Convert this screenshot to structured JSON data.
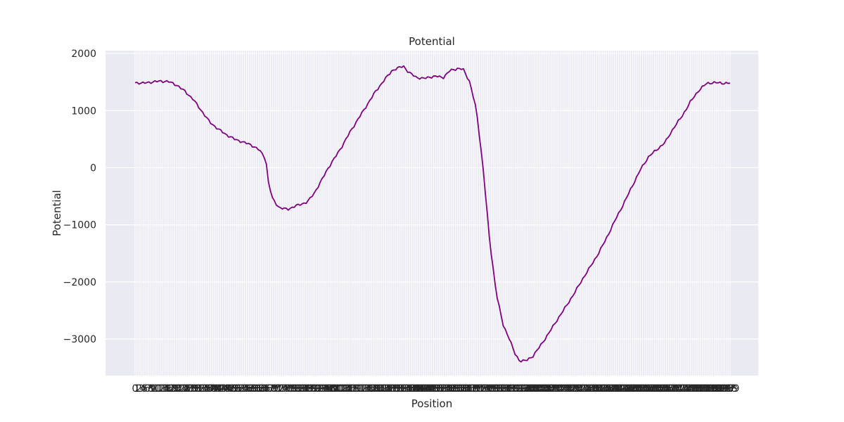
{
  "chart_data": {
    "type": "line",
    "title": "Potential",
    "xlabel": "Position",
    "ylabel": "Potential",
    "ylim": [
      -3640,
      2050
    ],
    "yticks": [
      2000,
      1000,
      0,
      -1000,
      -2000,
      -3000
    ],
    "ytick_labels": [
      "2000",
      "1000",
      "0",
      "−1000",
      "−2000",
      "−3000"
    ],
    "grid": true,
    "x_count": 300,
    "line_color": "#800080",
    "background_color": "#EAEAF2",
    "series": [
      {
        "name": "",
        "control_points": [
          [
            0,
            1490
          ],
          [
            5,
            1480
          ],
          [
            10,
            1500
          ],
          [
            15,
            1515
          ],
          [
            20,
            1510
          ],
          [
            25,
            1450
          ],
          [
            30,
            1340
          ],
          [
            35,
            1200
          ],
          [
            40,
            1000
          ],
          [
            45,
            800
          ],
          [
            50,
            680
          ],
          [
            55,
            580
          ],
          [
            60,
            500
          ],
          [
            65,
            450
          ],
          [
            70,
            400
          ],
          [
            75,
            310
          ],
          [
            79,
            150
          ],
          [
            80,
            -200
          ],
          [
            83,
            -550
          ],
          [
            87,
            -700
          ],
          [
            92,
            -730
          ],
          [
            96,
            -680
          ],
          [
            100,
            -640
          ],
          [
            104,
            -600
          ],
          [
            108,
            -450
          ],
          [
            112,
            -250
          ],
          [
            116,
            -30
          ],
          [
            120,
            150
          ],
          [
            125,
            380
          ],
          [
            130,
            640
          ],
          [
            135,
            870
          ],
          [
            140,
            1100
          ],
          [
            145,
            1330
          ],
          [
            150,
            1520
          ],
          [
            155,
            1700
          ],
          [
            160,
            1760
          ],
          [
            162,
            1780
          ],
          [
            165,
            1670
          ],
          [
            170,
            1580
          ],
          [
            174,
            1560
          ],
          [
            178,
            1590
          ],
          [
            182,
            1600
          ],
          [
            186,
            1580
          ],
          [
            190,
            1700
          ],
          [
            195,
            1740
          ],
          [
            198,
            1720
          ],
          [
            202,
            1500
          ],
          [
            206,
            1000
          ],
          [
            210,
            0
          ],
          [
            214,
            -1300
          ],
          [
            218,
            -2200
          ],
          [
            222,
            -2750
          ],
          [
            226,
            -3000
          ],
          [
            229,
            -3250
          ],
          [
            232,
            -3380
          ],
          [
            236,
            -3380
          ],
          [
            240,
            -3300
          ],
          [
            245,
            -3100
          ],
          [
            250,
            -2880
          ],
          [
            255,
            -2650
          ],
          [
            260,
            -2430
          ],
          [
            265,
            -2200
          ],
          [
            270,
            -1950
          ],
          [
            275,
            -1720
          ],
          [
            280,
            -1480
          ],
          [
            285,
            -1200
          ],
          [
            290,
            -900
          ],
          [
            295,
            -620
          ],
          [
            300,
            -320
          ],
          [
            305,
            -30
          ],
          [
            310,
            200
          ],
          [
            315,
            320
          ],
          [
            320,
            450
          ],
          [
            325,
            700
          ],
          [
            330,
            900
          ],
          [
            335,
            1150
          ],
          [
            340,
            1350
          ],
          [
            345,
            1480
          ],
          [
            350,
            1490
          ],
          [
            355,
            1480
          ],
          [
            359,
            1480
          ]
        ]
      }
    ]
  }
}
